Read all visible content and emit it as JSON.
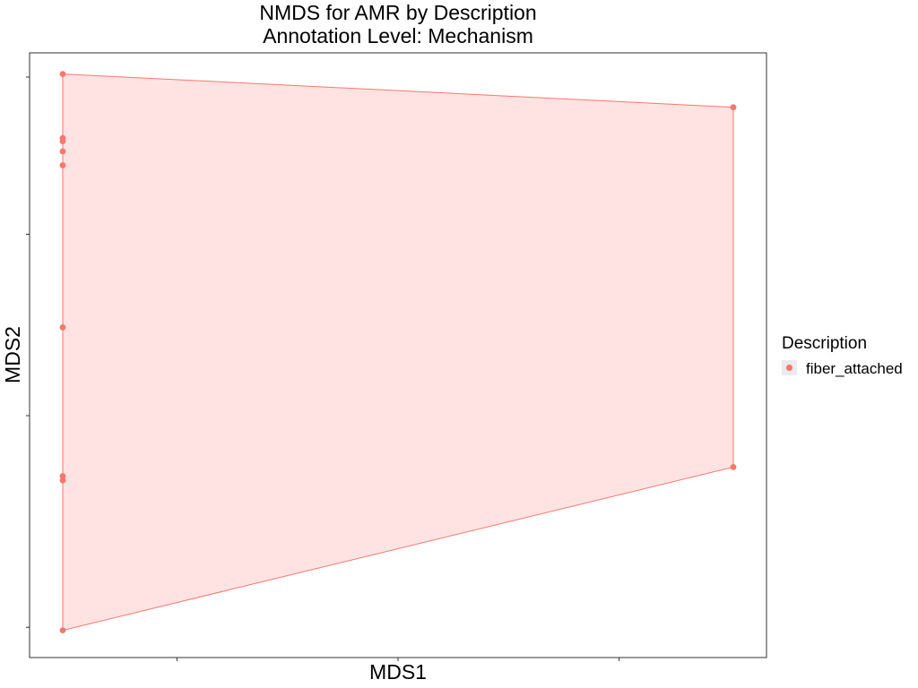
{
  "chart_data": {
    "type": "scatter",
    "title": "NMDS for AMR by Description",
    "subtitle": "Annotation Level: Mechanism",
    "xlabel": "MDS1",
    "ylabel": "MDS2",
    "xlim": [
      -0.2,
      0.8
    ],
    "ylim": [
      -0.2,
      0.8
    ],
    "grid": false,
    "legend": {
      "title": "Description",
      "position": "right",
      "entries": [
        "fiber_attached"
      ]
    },
    "series": [
      {
        "name": "fiber_attached",
        "color": "#F8766D",
        "hull_fill": "#FFE3E2",
        "x": [
          -0.155,
          -0.155,
          -0.155,
          -0.155,
          -0.155,
          -0.155,
          -0.155,
          -0.155,
          -0.155,
          0.755,
          0.755
        ],
        "y": [
          0.765,
          0.659,
          0.654,
          0.637,
          0.614,
          0.346,
          0.1,
          0.093,
          -0.155,
          0.71,
          0.115
        ]
      }
    ]
  }
}
